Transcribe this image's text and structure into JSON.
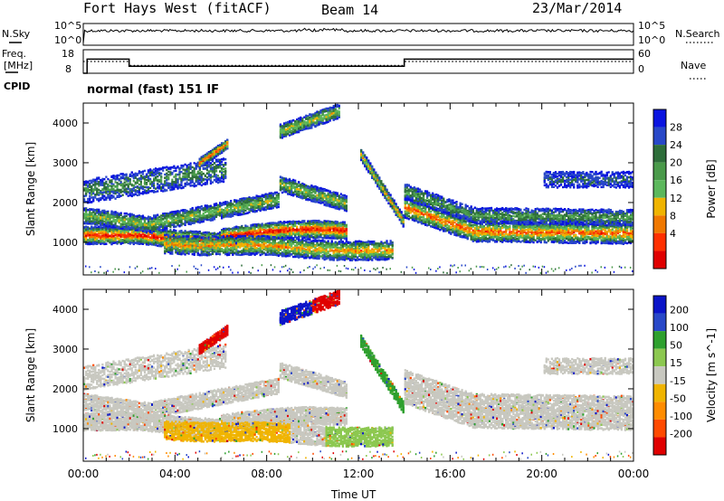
{
  "header": {
    "title": "Fort Hays West (fitACF)",
    "beam": "Beam 14",
    "date": "23/Mar/2014"
  },
  "left_labels": {
    "nsky": "N.Sky",
    "freq": "Freq.",
    "mhz": "[MHz]",
    "cpid": "CPID",
    "nsky_ticks": [
      "10^5",
      "10^0"
    ],
    "freq_ticks": [
      "18",
      "8"
    ]
  },
  "right_labels": {
    "nsearch": "N.Search",
    "nave": "Nave",
    "nsearch_ticks": [
      "10^5",
      "10^0"
    ],
    "nave_ticks": [
      "60",
      "0"
    ]
  },
  "cpid_text": "normal (fast) 151 IF",
  "colors": {
    "power": [
      "#0a14e0",
      "#2848c8",
      "#2e6e3a",
      "#4a9a4a",
      "#5cb85c",
      "#f0b400",
      "#f07800",
      "#ff3000",
      "#e00000"
    ],
    "velocity": [
      "#e00000",
      "#ff4a00",
      "#ff8c00",
      "#f0b400",
      "#c8c8c0",
      "#8cc850",
      "#2ea02e",
      "#2848c8",
      "#0a14c8"
    ]
  },
  "chart_data": [
    {
      "type": "line",
      "name": "N.Sky / N.Search",
      "ylim_label": [
        "10^0",
        "10^5"
      ],
      "note": "sky noise trace roughly constant near top of panel"
    },
    {
      "type": "line",
      "series": [
        {
          "name": "Freq. [MHz]",
          "style": "solid",
          "x": [
            "00:00",
            "00:10",
            "02:00",
            "14:00",
            "24:00"
          ],
          "values": [
            8,
            14,
            11,
            14,
            14
          ]
        },
        {
          "name": "Nave",
          "style": "dotted",
          "x": [
            "00:00",
            "02:00",
            "14:00",
            "24:00"
          ],
          "values": [
            30,
            20,
            30,
            30
          ]
        }
      ],
      "ylim": [
        8,
        18
      ],
      "ylim_right": [
        0,
        60
      ]
    },
    {
      "type": "heatmap",
      "name": "Power",
      "xlabel": "Time UT",
      "ylabel": "Slant Range [km]",
      "xticks": [
        "00:00",
        "04:00",
        "08:00",
        "12:00",
        "16:00",
        "20:00",
        "00:00"
      ],
      "xlim_hours": [
        0,
        24
      ],
      "yticks": [
        1000,
        2000,
        3000,
        4000
      ],
      "ylim": [
        180,
        4500
      ],
      "colorbar": {
        "label": "Power [dB]",
        "ticks": [
          4,
          8,
          12,
          16,
          20,
          24,
          28
        ],
        "range": [
          0,
          30
        ]
      }
    },
    {
      "type": "heatmap",
      "name": "Velocity",
      "xlabel": "Time UT",
      "ylabel": "Slant Range [km]",
      "xticks": [
        "00:00",
        "04:00",
        "08:00",
        "12:00",
        "16:00",
        "20:00",
        "00:00"
      ],
      "xlim_hours": [
        0,
        24
      ],
      "yticks": [
        1000,
        2000,
        3000,
        4000
      ],
      "ylim": [
        180,
        4500
      ],
      "colorbar": {
        "label": "Velocity [m s^-1]",
        "ticks": [
          200,
          100,
          50,
          15,
          -15,
          -50,
          -100,
          -200
        ]
      }
    }
  ],
  "xaxis_label": "Time UT"
}
